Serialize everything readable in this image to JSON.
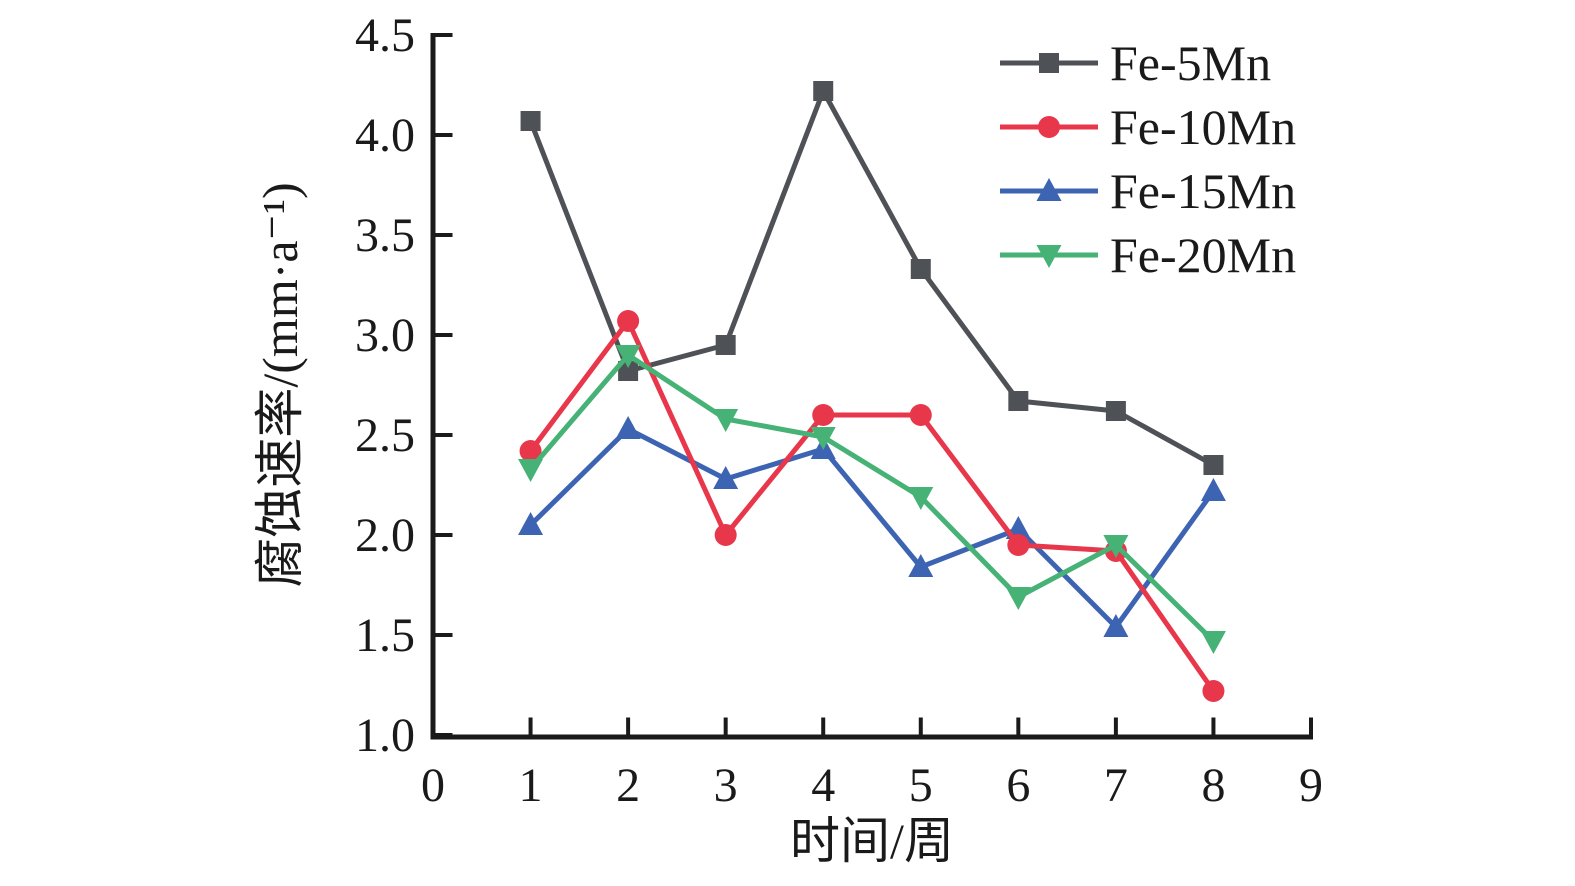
{
  "chart_data": {
    "type": "line",
    "title": "",
    "xlabel": "时间/周",
    "ylabel": "腐蚀速率/(mm·a⁻¹)",
    "xlim": [
      0,
      9
    ],
    "ylim": [
      1.0,
      4.5
    ],
    "x_ticks": [
      0,
      1,
      2,
      3,
      4,
      5,
      6,
      7,
      8,
      9
    ],
    "x_tick_labels": [
      "0",
      "1",
      "2",
      "3",
      "4",
      "5",
      "6",
      "7",
      "8",
      "9"
    ],
    "y_ticks": [
      1.0,
      1.5,
      2.0,
      2.5,
      3.0,
      3.5,
      4.0,
      4.5
    ],
    "y_tick_labels": [
      "1.0",
      "1.5",
      "2.0",
      "2.5",
      "3.0",
      "3.5",
      "4.0",
      "4.5"
    ],
    "grid": false,
    "legend_position": "top-right",
    "axis_color": "#1a1a1a",
    "x": [
      1,
      2,
      3,
      4,
      5,
      6,
      7,
      8
    ],
    "series": [
      {
        "name": "Fe-5Mn",
        "marker": "square",
        "color": "#4e5257",
        "values": [
          4.07,
          2.82,
          2.95,
          4.22,
          3.33,
          2.67,
          2.62,
          2.35
        ]
      },
      {
        "name": "Fe-10Mn",
        "marker": "circle",
        "color": "#e8364a",
        "values": [
          2.42,
          3.07,
          2.0,
          2.6,
          2.6,
          1.95,
          1.92,
          1.22
        ]
      },
      {
        "name": "Fe-15Mn",
        "marker": "triangle-up",
        "color": "#3d64b3",
        "values": [
          2.05,
          2.53,
          2.28,
          2.43,
          1.84,
          2.03,
          1.54,
          2.22
        ]
      },
      {
        "name": "Fe-20Mn",
        "marker": "triangle-down",
        "color": "#46b276",
        "values": [
          2.33,
          2.9,
          2.58,
          2.49,
          2.19,
          1.69,
          1.95,
          1.47
        ]
      }
    ],
    "draw_order": [
      0,
      2,
      1,
      3
    ]
  }
}
